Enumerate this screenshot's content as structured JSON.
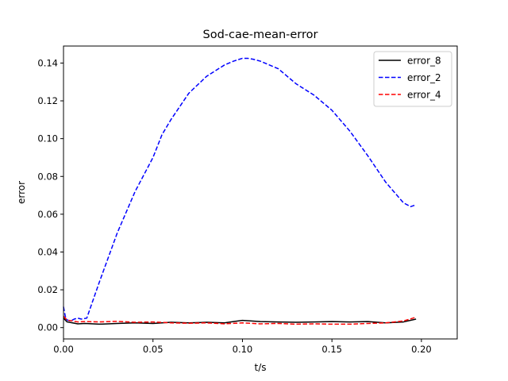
{
  "chart_data": {
    "type": "line",
    "title": "Sod-cae-mean-error",
    "xlabel": "t/s",
    "ylabel": "error",
    "xlim": [
      0,
      0.22
    ],
    "ylim": [
      -0.006,
      0.149
    ],
    "xticks": [
      0.0,
      0.05,
      0.1,
      0.15,
      0.2
    ],
    "xtick_labels": [
      "0.00",
      "0.05",
      "0.10",
      "0.15",
      "0.20"
    ],
    "yticks": [
      0.0,
      0.02,
      0.04,
      0.06,
      0.08,
      0.1,
      0.12,
      0.14
    ],
    "ytick_labels": [
      "0.00",
      "0.02",
      "0.04",
      "0.06",
      "0.08",
      "0.10",
      "0.12",
      "0.14"
    ],
    "grid": false,
    "legend_position": "top-right",
    "series": [
      {
        "name": "error_8",
        "color": "#000000",
        "dash": "solid",
        "x": [
          0,
          0.002,
          0.005,
          0.008,
          0.012,
          0.02,
          0.03,
          0.04,
          0.05,
          0.06,
          0.07,
          0.08,
          0.09,
          0.095,
          0.1,
          0.105,
          0.11,
          0.12,
          0.13,
          0.14,
          0.15,
          0.16,
          0.17,
          0.18,
          0.19,
          0.197
        ],
        "y": [
          0.005,
          0.003,
          0.0025,
          0.002,
          0.0022,
          0.0018,
          0.0022,
          0.0025,
          0.0022,
          0.0028,
          0.0025,
          0.0028,
          0.0025,
          0.0032,
          0.0038,
          0.0035,
          0.0032,
          0.003,
          0.0028,
          0.003,
          0.0032,
          0.003,
          0.0032,
          0.0025,
          0.003,
          0.0045
        ]
      },
      {
        "name": "error_2",
        "color": "#0000ff",
        "dash": "dashed",
        "x": [
          0,
          0.001,
          0.002,
          0.004,
          0.006,
          0.008,
          0.01,
          0.013,
          0.02,
          0.03,
          0.04,
          0.05,
          0.055,
          0.06,
          0.07,
          0.08,
          0.09,
          0.095,
          0.1,
          0.103,
          0.106,
          0.11,
          0.12,
          0.13,
          0.14,
          0.15,
          0.16,
          0.17,
          0.18,
          0.19,
          0.194,
          0.197
        ],
        "y": [
          0.011,
          0.006,
          0.004,
          0.0035,
          0.0045,
          0.005,
          0.0045,
          0.005,
          0.024,
          0.05,
          0.072,
          0.09,
          0.102,
          0.11,
          0.124,
          0.133,
          0.139,
          0.141,
          0.1425,
          0.1425,
          0.142,
          0.141,
          0.137,
          0.129,
          0.123,
          0.115,
          0.104,
          0.091,
          0.077,
          0.066,
          0.064,
          0.065
        ]
      },
      {
        "name": "error_4",
        "color": "#ff0000",
        "dash": "dashed",
        "x": [
          0,
          0.002,
          0.005,
          0.008,
          0.012,
          0.02,
          0.03,
          0.04,
          0.05,
          0.06,
          0.07,
          0.08,
          0.09,
          0.1,
          0.11,
          0.12,
          0.13,
          0.14,
          0.15,
          0.16,
          0.17,
          0.18,
          0.19,
          0.197
        ],
        "y": [
          0.006,
          0.004,
          0.0035,
          0.003,
          0.0032,
          0.003,
          0.0033,
          0.0028,
          0.003,
          0.0025,
          0.0023,
          0.0025,
          0.002,
          0.0025,
          0.002,
          0.0022,
          0.0018,
          0.002,
          0.0018,
          0.0018,
          0.0022,
          0.0025,
          0.0035,
          0.0055
        ]
      }
    ]
  }
}
